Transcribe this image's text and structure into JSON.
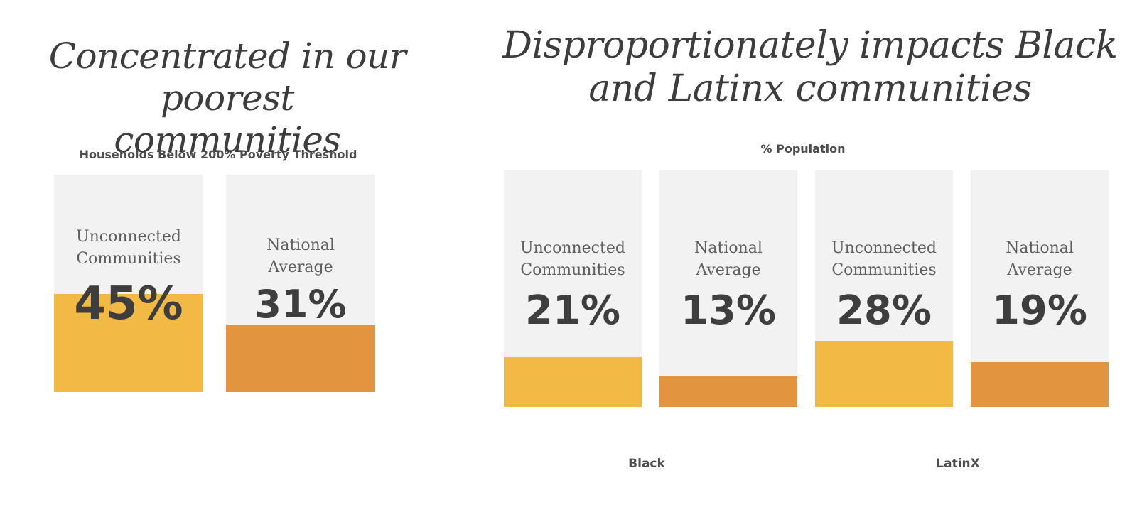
{
  "left_panel": {
    "heading_lines": [
      "Concentrated in our poorest",
      "communities"
    ]
  },
  "right_panel": {
    "heading_lines": [
      "Disproportionately impacts Black",
      "and Latinx communities"
    ]
  },
  "colors": {
    "unconnected": "#f2b944",
    "national_average": "#e2943e",
    "card_background": "#f2f2f2",
    "text_dark": "#3e3e3e"
  },
  "chart_data": [
    {
      "type": "bar",
      "title": "Households Below 200% Poverty Threshold",
      "categories": [
        "Unconnected Communities",
        "National Average"
      ],
      "category_lines": [
        [
          "Unconnected",
          "Communities"
        ],
        [
          "National",
          "Average"
        ]
      ],
      "values": [
        45,
        31
      ],
      "value_labels": [
        "45%",
        "31%"
      ],
      "ylim": [
        0,
        100
      ],
      "grid": false,
      "legend": "none"
    },
    {
      "type": "bar",
      "title": "% Population",
      "groups": [
        "Black",
        "LatinX"
      ],
      "categories": [
        "Unconnected Communities",
        "National Average"
      ],
      "category_lines": [
        [
          "Unconnected",
          "Communities"
        ],
        [
          "National",
          "Average"
        ]
      ],
      "series": [
        {
          "values": [
            21,
            13
          ],
          "value_labels": [
            "21%",
            "13%"
          ]
        },
        {
          "values": [
            28,
            19
          ],
          "value_labels": [
            "28%",
            "19%"
          ]
        }
      ],
      "ylim": [
        0,
        100
      ],
      "grid": false,
      "legend": "none"
    }
  ]
}
